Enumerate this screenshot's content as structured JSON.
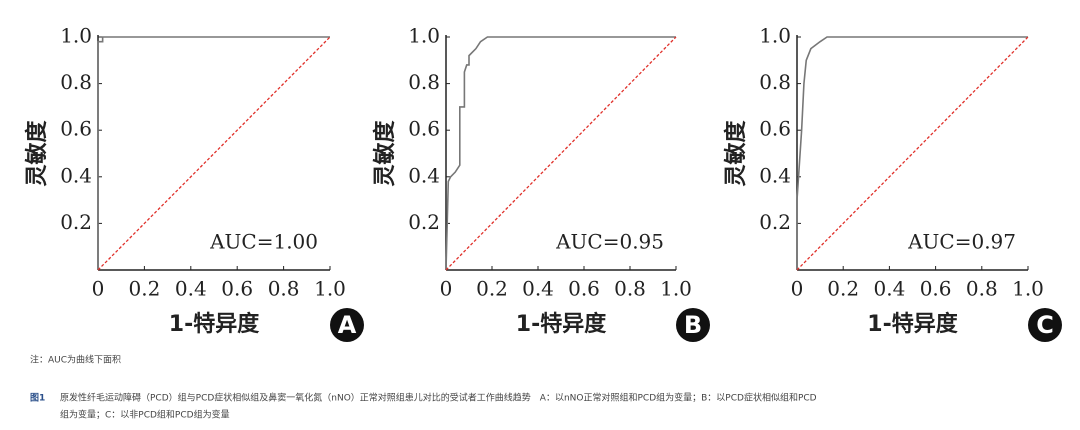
{
  "chart_data": [
    {
      "type": "line",
      "panel": "A",
      "annotation": "AUC=1.00",
      "xlabel": "1-特异度",
      "ylabel": "灵敏度",
      "xlim": [
        0,
        1
      ],
      "ylim": [
        0,
        1
      ],
      "xticks": [
        0,
        0.2,
        0.4,
        0.6,
        0.8,
        {
          "value": 1,
          "label": "1.0"
        }
      ],
      "yticks": [
        0.2,
        0.4,
        0.6,
        0.8,
        {
          "value": 1,
          "label": "1.0"
        }
      ],
      "series": [
        {
          "color": "#777777",
          "x": [
            0,
            0,
            0.02,
            0.02,
            1
          ],
          "values": [
            0,
            0.98,
            0.98,
            1,
            1
          ]
        },
        {
          "color": "#e0302a",
          "dash": true,
          "x": [
            0,
            1
          ],
          "values": [
            0,
            1
          ]
        }
      ]
    },
    {
      "type": "line",
      "panel": "B",
      "annotation": "AUC=0.95",
      "xlabel": "1-特异度",
      "ylabel": "灵敏度",
      "xlim": [
        0,
        1
      ],
      "ylim": [
        0,
        1
      ],
      "xticks": [
        0,
        0.2,
        0.4,
        0.6,
        0.8,
        {
          "value": 1,
          "label": "1.0"
        }
      ],
      "yticks": [
        0.2,
        0.4,
        0.6,
        0.8,
        {
          "value": 1,
          "label": "1.0"
        }
      ],
      "series": [
        {
          "color": "#777777",
          "x": [
            0,
            0.01,
            0.02,
            0.04,
            0.06,
            0.06,
            0.08,
            0.08,
            0.09,
            0.1,
            0.1,
            0.13,
            0.15,
            0.18,
            1
          ],
          "values": [
            0,
            0.38,
            0.4,
            0.42,
            0.45,
            0.7,
            0.7,
            0.85,
            0.88,
            0.88,
            0.92,
            0.95,
            0.98,
            1,
            1
          ]
        },
        {
          "color": "#e0302a",
          "dash": true,
          "x": [
            0,
            1
          ],
          "values": [
            0,
            1
          ]
        }
      ]
    },
    {
      "type": "line",
      "panel": "C",
      "annotation": "AUC=0.97",
      "xlabel": "1-特异度",
      "ylabel": "灵敏度",
      "xlim": [
        0,
        1
      ],
      "ylim": [
        0,
        1
      ],
      "xticks": [
        0,
        0.2,
        0.4,
        0.6,
        0.8,
        {
          "value": 1,
          "label": "1.0"
        }
      ],
      "yticks": [
        0.2,
        0.4,
        0.6,
        0.8,
        {
          "value": 1,
          "label": "1.0"
        }
      ],
      "series": [
        {
          "color": "#777777",
          "x": [
            0,
            0,
            0.02,
            0.03,
            0.04,
            0.06,
            0.1,
            0.13,
            1
          ],
          "values": [
            0,
            0.3,
            0.6,
            0.8,
            0.9,
            0.95,
            0.98,
            1,
            1
          ]
        },
        {
          "color": "#e0302a",
          "dash": true,
          "x": [
            0,
            1
          ],
          "values": [
            0,
            1
          ]
        }
      ]
    }
  ],
  "note": "注：AUC为曲线下面积",
  "caption": {
    "label": "图1",
    "lines": [
      "原发性纤毛运动障碍（PCD）组与PCD症状相似组及鼻窦一氧化氮（nNO）正常对照组患儿对比的受试者工作曲线趋势　A：以nNO正常对照组和PCD组为变量；B：以PCD症状相似组和PCD组为变量；C：以非PCD组和PCD组为变量",
      "组为变量；C：以非PCD组和PCD组为变量"
    ]
  }
}
